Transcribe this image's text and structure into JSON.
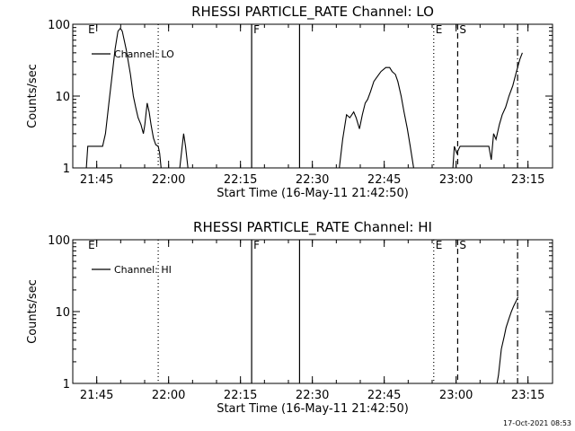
{
  "figure": {
    "timestamp": "17-Oct-2021 08:53"
  },
  "chart_data": [
    {
      "type": "line",
      "title": "RHESSI PARTICLE_RATE Channel: LO",
      "xlabel": "Start Time (16-May-11 21:42:50)",
      "ylabel": "Counts/sec",
      "y_scale": "log",
      "ylim": [
        1,
        100
      ],
      "y_ticks": [
        "1",
        "10",
        "100"
      ],
      "xlim_min": [
        -2.83,
        76.17
      ],
      "x_ticks": [
        "21:45",
        "22:00",
        "22:15",
        "22:30",
        "22:45",
        "23:00",
        "23:15"
      ],
      "x_tick_min": [
        2.17,
        17.17,
        32.17,
        47.17,
        62.17,
        77.17,
        92.17
      ],
      "legend": {
        "label": "Channel: LO",
        "position": "top-left"
      },
      "markers": [
        {
          "label": "E",
          "x_min": 0.0,
          "style": "none"
        },
        {
          "label": "",
          "x_min": 15.0,
          "style": "dotted"
        },
        {
          "label": "F",
          "x_min": 34.5,
          "style": "solid"
        },
        {
          "label": "",
          "x_min": 44.5,
          "style": "solid"
        },
        {
          "label": "E",
          "x_min": 72.5,
          "style": "dotted"
        },
        {
          "label": "S",
          "x_min": 77.5,
          "style": "dashed"
        },
        {
          "label": "",
          "x_min": 90.0,
          "style": "dashdot"
        }
      ],
      "series": [
        {
          "name": "Channel: LO",
          "segments": [
            [
              [
                0.0,
                1
              ],
              [
                0.3,
                2
              ],
              [
                3.4,
                2
              ],
              [
                4.0,
                3
              ],
              [
                4.7,
                8
              ],
              [
                5.4,
                20
              ],
              [
                6.0,
                45
              ],
              [
                6.6,
                80
              ],
              [
                7.1,
                88
              ],
              [
                7.5,
                80
              ],
              [
                8.3,
                45
              ],
              [
                9.2,
                20
              ],
              [
                9.8,
                10
              ],
              [
                10.3,
                7
              ],
              [
                10.8,
                5
              ],
              [
                11.4,
                4
              ],
              [
                11.9,
                3
              ],
              [
                12.2,
                4
              ],
              [
                12.7,
                8
              ],
              [
                13.1,
                6
              ],
              [
                13.5,
                4
              ],
              [
                14.0,
                2.6
              ],
              [
                14.5,
                2.1
              ],
              [
                15.0,
                2.0
              ],
              [
                15.3,
                1.6
              ],
              [
                15.6,
                1
              ]
            ],
            [
              [
                19.5,
                1
              ],
              [
                20.0,
                2.0
              ],
              [
                20.3,
                3.0
              ],
              [
                20.7,
                2.0
              ],
              [
                21.2,
                1
              ]
            ],
            [
              [
                52.8,
                1
              ],
              [
                53.5,
                2.5
              ],
              [
                54.3,
                5.5
              ],
              [
                55.0,
                5.0
              ],
              [
                55.8,
                6.0
              ],
              [
                56.3,
                5.0
              ],
              [
                57.0,
                3.5
              ],
              [
                57.6,
                5.5
              ],
              [
                58.2,
                8.0
              ],
              [
                58.7,
                9.0
              ],
              [
                59.3,
                11.5
              ],
              [
                60.0,
                16.0
              ],
              [
                60.8,
                19.0
              ],
              [
                61.5,
                22.0
              ],
              [
                62.5,
                25.0
              ],
              [
                63.3,
                25.0
              ],
              [
                63.8,
                22.0
              ],
              [
                64.5,
                20.0
              ],
              [
                65.0,
                16.0
              ],
              [
                65.7,
                10.0
              ],
              [
                66.3,
                6.0
              ],
              [
                67.0,
                3.5
              ],
              [
                67.6,
                2.0
              ],
              [
                68.3,
                1
              ]
            ],
            [
              [
                76.5,
                1
              ],
              [
                76.8,
                2.0
              ],
              [
                77.3,
                1.6
              ],
              [
                78.0,
                2.0
              ],
              [
                84.0,
                2.0
              ],
              [
                84.5,
                1.3
              ],
              [
                85.0,
                3.0
              ],
              [
                85.5,
                2.5
              ],
              [
                86.2,
                4.0
              ],
              [
                86.8,
                5.5
              ],
              [
                87.5,
                7.0
              ],
              [
                88.2,
                10.0
              ],
              [
                89.0,
                14.0
              ],
              [
                89.6,
                20.0
              ],
              [
                90.0,
                25.0
              ],
              [
                90.5,
                33.0
              ],
              [
                91.0,
                40.0
              ]
            ]
          ]
        }
      ]
    },
    {
      "type": "line",
      "title": "RHESSI PARTICLE_RATE Channel: HI",
      "xlabel": "Start Time (16-May-11 21:42:50)",
      "ylabel": "Counts/sec",
      "y_scale": "log",
      "ylim": [
        1,
        100
      ],
      "y_ticks": [
        "1",
        "10",
        "100"
      ],
      "xlim_min": [
        -2.83,
        76.17
      ],
      "x_ticks": [
        "21:45",
        "22:00",
        "22:15",
        "22:30",
        "22:45",
        "23:00",
        "23:15"
      ],
      "x_tick_min": [
        2.17,
        17.17,
        32.17,
        47.17,
        62.17,
        77.17,
        92.17
      ],
      "legend": {
        "label": "Channel: HI",
        "position": "top-left"
      },
      "markers": [
        {
          "label": "E",
          "x_min": 0.0,
          "style": "none"
        },
        {
          "label": "",
          "x_min": 15.0,
          "style": "dotted"
        },
        {
          "label": "F",
          "x_min": 34.5,
          "style": "solid"
        },
        {
          "label": "",
          "x_min": 44.5,
          "style": "solid"
        },
        {
          "label": "E",
          "x_min": 72.5,
          "style": "dotted"
        },
        {
          "label": "S",
          "x_min": 77.5,
          "style": "dashed"
        },
        {
          "label": "",
          "x_min": 90.0,
          "style": "dashdot"
        }
      ],
      "series": [
        {
          "name": "Channel: HI",
          "segments": [
            [
              [
                85.7,
                1
              ],
              [
                86.0,
                1.3
              ],
              [
                86.6,
                3.0
              ],
              [
                87.2,
                4.5
              ],
              [
                87.6,
                6.0
              ],
              [
                88.2,
                8.0
              ],
              [
                88.7,
                10.0
              ],
              [
                89.2,
                12.0
              ],
              [
                89.7,
                14.0
              ],
              [
                90.1,
                16.0
              ]
            ]
          ]
        }
      ]
    }
  ]
}
